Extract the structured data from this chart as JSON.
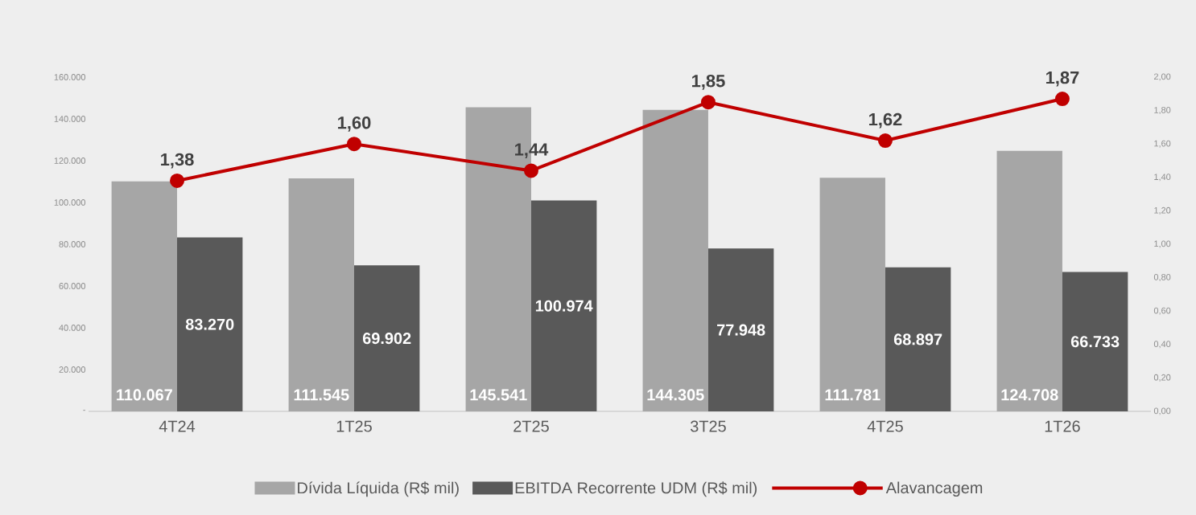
{
  "chart_data": {
    "type": "bar",
    "categories": [
      "4T24",
      "1T25",
      "2T25",
      "3T25",
      "4T25",
      "1T26"
    ],
    "series": [
      {
        "name": "Dívida Líquida (R$ mil)",
        "color": "#a6a6a6",
        "values": [
          110067,
          111545,
          145541,
          144305,
          111781,
          124708
        ],
        "value_labels": [
          "110.067",
          "111.545",
          "145.541",
          "144.305",
          "111.781",
          "124.708"
        ]
      },
      {
        "name": "EBITDA Recorrente UDM (R$ mil)",
        "color": "#595959",
        "values": [
          83270,
          69902,
          100974,
          77948,
          68897,
          66733
        ],
        "value_labels": [
          "83.270",
          "69.902",
          "100.974",
          "77.948",
          "68.897",
          "66.733"
        ]
      },
      {
        "name": "Alavancagem",
        "type": "line",
        "axis": "y2",
        "color": "#c00000",
        "marker": "circle",
        "line_style": "solid",
        "values": [
          1.38,
          1.6,
          1.44,
          1.85,
          1.62,
          1.87
        ],
        "value_labels": [
          "1,38",
          "1,60",
          "1,44",
          "1,85",
          "1,62",
          "1,87"
        ]
      }
    ],
    "ylim": [
      0,
      160000
    ],
    "yticks": [
      {
        "value": 0,
        "label": "-"
      },
      {
        "value": 20000,
        "label": "20.000"
      },
      {
        "value": 40000,
        "label": "40.000"
      },
      {
        "value": 60000,
        "label": "60.000"
      },
      {
        "value": 80000,
        "label": "80.000"
      },
      {
        "value": 100000,
        "label": "100.000"
      },
      {
        "value": 120000,
        "label": "120.000"
      },
      {
        "value": 140000,
        "label": "140.000"
      },
      {
        "value": 160000,
        "label": "160.000"
      }
    ],
    "y2lim": [
      0,
      2
    ],
    "y2ticks": [
      {
        "value": 0,
        "label": "0,00"
      },
      {
        "value": 0.2,
        "label": "0,20"
      },
      {
        "value": 0.4,
        "label": "0,40"
      },
      {
        "value": 0.6,
        "label": "0,60"
      },
      {
        "value": 0.8,
        "label": "0,80"
      },
      {
        "value": 1,
        "label": "1,00"
      },
      {
        "value": 1.2,
        "label": "1,20"
      },
      {
        "value": 1.4,
        "label": "1,40"
      },
      {
        "value": 1.6,
        "label": "1,60"
      },
      {
        "value": 1.8,
        "label": "1,80"
      },
      {
        "value": 2,
        "label": "2,00"
      }
    ],
    "legend": "bottom"
  }
}
